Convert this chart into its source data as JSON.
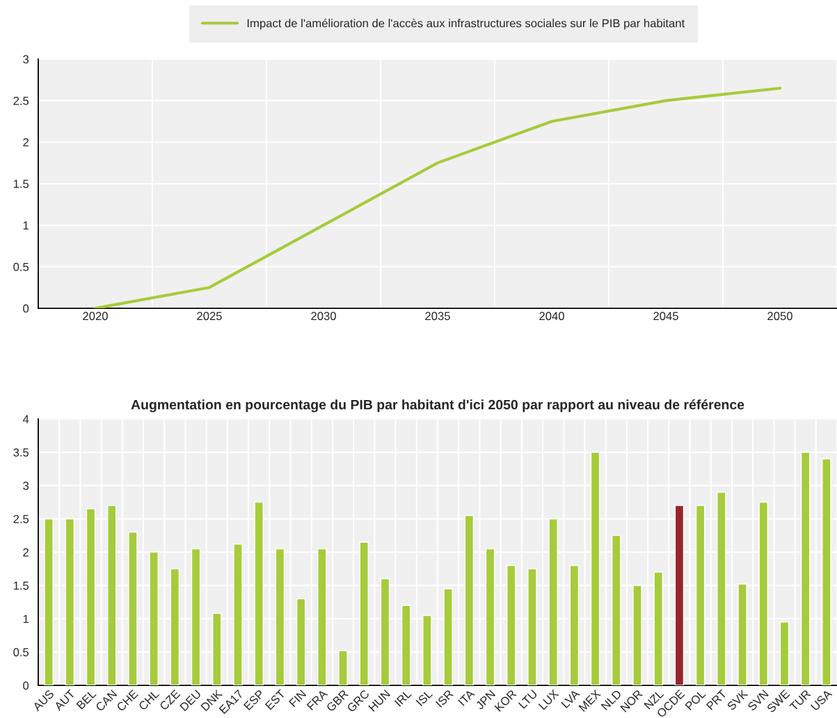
{
  "chart_data": [
    {
      "type": "line",
      "categories": [
        "2020",
        "2025",
        "2030",
        "2035",
        "2040",
        "2045",
        "2050"
      ],
      "series": [
        {
          "name": "Impact de l'amélioration de l'accès aux infrastructures sociales sur le PIB par habitant",
          "color": "#a6cb3b",
          "values": [
            0,
            0.25,
            1.0,
            1.75,
            2.25,
            2.5,
            2.65
          ]
        }
      ],
      "ylim": [
        0,
        3
      ],
      "yticks": [
        0,
        0.5,
        1,
        1.5,
        2,
        2.5,
        3
      ],
      "grid": true,
      "legend": "top",
      "marker": "none",
      "line_style": "solid"
    },
    {
      "type": "bar",
      "title": "Augmentation en pourcentage du PIB par habitant d'ici 2050 par rapport au niveau de référence",
      "categories": [
        "AUS",
        "AUT",
        "BEL",
        "CAN",
        "CHE",
        "CHL",
        "CZE",
        "DEU",
        "DNK",
        "EA17",
        "ESP",
        "EST",
        "FIN",
        "FRA",
        "GBR",
        "GRC",
        "HUN",
        "IRL",
        "ISL",
        "ISR",
        "ITA",
        "JPN",
        "KOR",
        "LTU",
        "LUX",
        "LVA",
        "MEX",
        "NLD",
        "NOR",
        "NZL",
        "OCDE",
        "POL",
        "PRT",
        "SVK",
        "SVN",
        "SWE",
        "TUR",
        "USA"
      ],
      "values": [
        2.5,
        2.5,
        2.65,
        2.7,
        2.3,
        2.0,
        1.75,
        2.05,
        1.08,
        2.12,
        2.75,
        2.05,
        1.3,
        2.05,
        0.52,
        2.15,
        1.6,
        1.2,
        1.05,
        1.45,
        2.55,
        2.05,
        1.8,
        1.75,
        2.5,
        1.8,
        3.5,
        2.25,
        1.5,
        1.7,
        2.7,
        2.7,
        2.9,
        1.52,
        2.75,
        0.95,
        3.5,
        3.4
      ],
      "colors": [
        "#a6cb3b",
        "#a6cb3b",
        "#a6cb3b",
        "#a6cb3b",
        "#a6cb3b",
        "#a6cb3b",
        "#a6cb3b",
        "#a6cb3b",
        "#a6cb3b",
        "#a6cb3b",
        "#a6cb3b",
        "#a6cb3b",
        "#a6cb3b",
        "#a6cb3b",
        "#a6cb3b",
        "#a6cb3b",
        "#a6cb3b",
        "#a6cb3b",
        "#a6cb3b",
        "#a6cb3b",
        "#a6cb3b",
        "#a6cb3b",
        "#a6cb3b",
        "#a6cb3b",
        "#a6cb3b",
        "#a6cb3b",
        "#a6cb3b",
        "#a6cb3b",
        "#a6cb3b",
        "#a6cb3b",
        "#96262c",
        "#a6cb3b",
        "#a6cb3b",
        "#a6cb3b",
        "#a6cb3b",
        "#a6cb3b",
        "#a6cb3b",
        "#a6cb3b"
      ],
      "ylim": [
        0,
        4
      ],
      "yticks": [
        0,
        0.5,
        1,
        1.5,
        2,
        2.5,
        3,
        3.5,
        4
      ],
      "grid": true
    }
  ]
}
